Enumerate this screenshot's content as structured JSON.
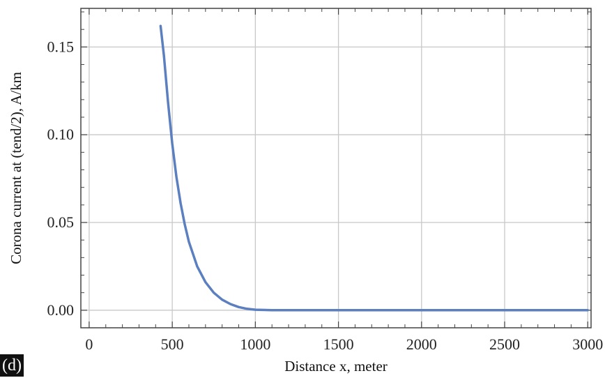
{
  "panel_label": "(d)",
  "chart_data": {
    "type": "line",
    "xlabel": "Distance x, meter",
    "ylabel": "Corona current at (tend/2), A/km",
    "xlim": [
      -50,
      3020
    ],
    "ylim": [
      -0.01,
      0.172
    ],
    "xticks": [
      0,
      500,
      1000,
      1500,
      2000,
      2500,
      3000
    ],
    "xtick_labels": [
      "0",
      "500",
      "1000",
      "1500",
      "2000",
      "2500",
      "3000"
    ],
    "yticks": [
      0.0,
      0.05,
      0.1,
      0.15
    ],
    "ytick_labels": [
      "0.00",
      "0.05",
      "0.10",
      "0.15"
    ],
    "grid": true,
    "series": [
      {
        "color": "#5b7fbf",
        "x": [
          430,
          450,
          475,
          500,
          525,
          550,
          575,
          600,
          650,
          700,
          750,
          800,
          850,
          900,
          950,
          1000,
          1100,
          1200,
          1500,
          2000,
          2500,
          3000
        ],
        "y": [
          0.162,
          0.145,
          0.118,
          0.095,
          0.076,
          0.061,
          0.049,
          0.039,
          0.025,
          0.016,
          0.01,
          0.006,
          0.0035,
          0.0018,
          0.0008,
          0.0003,
          0.0,
          0.0,
          0.0,
          0.0,
          0.0,
          0.0
        ]
      }
    ]
  }
}
